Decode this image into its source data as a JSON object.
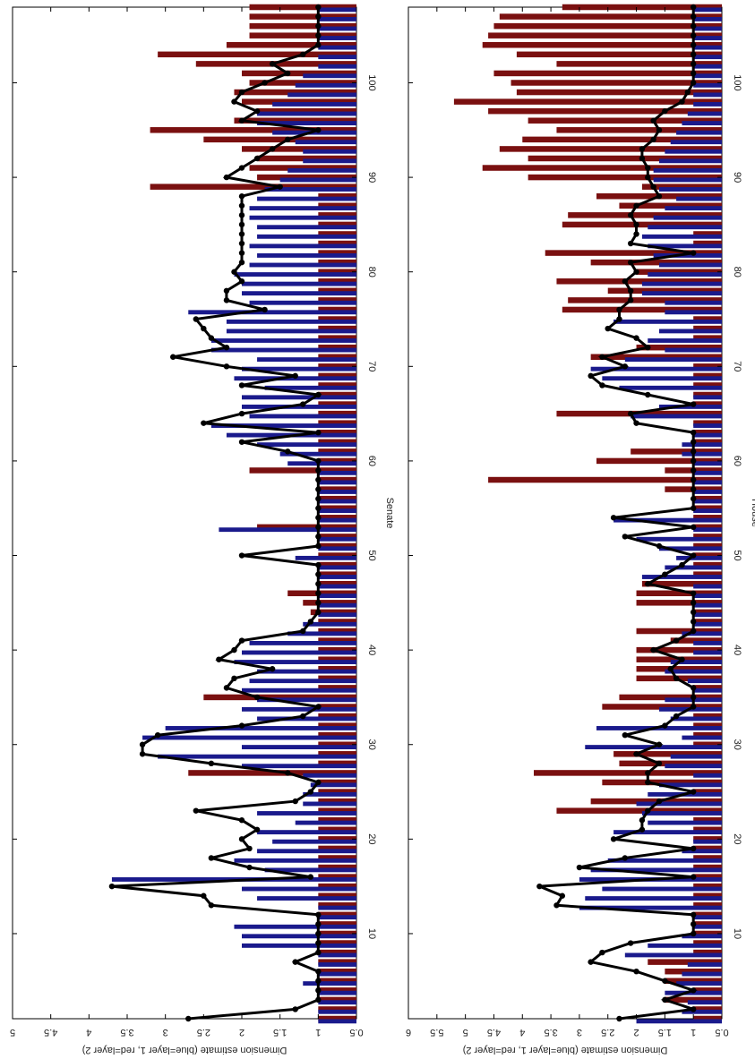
{
  "chart_data": [
    {
      "type": "bar",
      "panel": "top",
      "xlabel": "Senate",
      "ylabel": "Dimension estimate (blue=layer 1, red=layer 2)",
      "xlim": [
        1,
        108
      ],
      "ylim": [
        0.5,
        5
      ],
      "xticks": [
        10,
        20,
        30,
        40,
        50,
        60,
        70,
        80,
        90,
        100
      ],
      "xtick_labels": [
        "10",
        "20",
        "30",
        "40",
        "50",
        "60",
        "70",
        "80",
        "90",
        "100"
      ],
      "yticks": [
        0.5,
        1,
        1.5,
        2,
        2.5,
        3,
        3.5,
        4,
        4.5,
        5
      ],
      "ytick_labels": [
        "0.5",
        "1",
        "1.5",
        "2",
        "2.5",
        "3",
        "3.5",
        "4",
        "4.5",
        "5"
      ],
      "colors": {
        "layer1": "#1a1a8c",
        "layer2": "#7a1010",
        "line": "#000000"
      },
      "series": [
        {
          "name": "layer 1",
          "color": "#1a1a8c",
          "values": [
            1,
            1,
            1,
            1,
            1.2,
            1,
            1,
            1,
            2.0,
            2.0,
            2.1,
            1,
            1,
            1.8,
            2.0,
            3.7,
            1.7,
            2.1,
            1.8,
            1.6,
            1.8,
            1.3,
            1.8,
            1.2,
            1.2,
            1.1,
            1.2,
            2.0,
            3.1,
            2.0,
            3.3,
            3.0,
            1.8,
            2.0,
            1.8,
            2.0,
            1.9,
            1.8,
            2.1,
            2.0,
            1.9,
            1.4,
            1.2,
            1,
            1,
            1,
            1,
            1,
            1,
            1.3,
            1,
            1,
            2.3,
            1,
            1,
            1,
            1,
            1,
            1,
            1.4,
            1.5,
            1.8,
            2.2,
            2.4,
            1.9,
            2.0,
            2.0,
            1.7,
            2.1,
            2.0,
            1.8,
            2.4,
            2.4,
            2.2,
            2.2,
            2.7,
            1.9,
            2.0,
            2.0,
            2.1,
            1.9,
            1.8,
            1.9,
            1.8,
            1.8,
            1.9,
            1.9,
            1.8,
            1.7,
            1.5,
            1.4,
            1.2,
            1.2,
            1.3,
            1.6,
            1.8,
            1.8,
            1.6,
            1.4,
            1.3,
            1.2,
            1,
            1,
            1,
            1,
            1,
            1,
            1
          ]
        },
        {
          "name": "layer 2",
          "color": "#7a1010",
          "values": [
            1,
            1,
            1,
            1,
            1,
            1,
            1,
            1,
            1,
            1,
            1,
            1,
            1,
            1,
            1,
            1,
            1,
            1,
            1,
            1,
            1,
            1,
            1,
            1,
            1,
            1,
            2.7,
            1,
            1,
            1,
            1,
            1,
            1,
            1,
            2.5,
            1,
            1,
            1,
            1,
            1,
            1,
            1,
            1,
            1.1,
            1.2,
            1.4,
            1,
            1,
            1,
            1,
            1,
            1,
            1.8,
            1,
            1,
            1,
            1,
            1,
            1.9,
            1,
            1,
            1,
            1,
            1,
            1,
            1,
            1,
            1,
            1,
            1,
            1,
            1,
            1,
            1,
            1,
            1,
            1,
            1,
            1,
            1,
            1,
            1,
            1,
            1,
            1,
            1,
            1,
            1,
            3.2,
            1.8,
            1.9,
            1.8,
            2.0,
            2.5,
            3.2,
            2.1,
            1.8,
            2.0,
            2.1,
            1.9,
            2.0,
            2.6,
            3.1,
            2.2,
            1.9,
            1.9,
            1.9,
            1.9
          ]
        },
        {
          "name": "estimate",
          "color": "#000000",
          "values": [
            2.7,
            1.3,
            1,
            1,
            1,
            1,
            1.3,
            1,
            1,
            1,
            1,
            1,
            2.4,
            2.5,
            3.7,
            1.1,
            1.9,
            2.4,
            1.9,
            2.0,
            1.8,
            2.0,
            2.6,
            1.3,
            1.1,
            1.0,
            1.4,
            2.4,
            3.3,
            3.3,
            3.1,
            2.0,
            1.2,
            1.0,
            1.8,
            2.2,
            2.1,
            1.6,
            2.3,
            2.1,
            2.0,
            1.2,
            1.1,
            1.0,
            1.0,
            1.0,
            1.0,
            1.0,
            1.0,
            2.0,
            1.0,
            1.0,
            1.0,
            1.0,
            1.0,
            1.0,
            1.0,
            1.0,
            1.0,
            1.0,
            1.4,
            2.0,
            1.0,
            2.5,
            2.0,
            1.2,
            1.0,
            2.0,
            1.3,
            2.2,
            2.9,
            2.2,
            2.4,
            2.5,
            2.6,
            1.7,
            2.2,
            2.2,
            2.0,
            2.1,
            2.0,
            2.0,
            2.0,
            2.0,
            2.0,
            2.0,
            2.0,
            2.0,
            1.5,
            2.2,
            2.0,
            1.8,
            1.6,
            1.4,
            1.0,
            2.0,
            1.8,
            2.1,
            2.0,
            1.7,
            1.4,
            1.6,
            1.2,
            1,
            1,
            1,
            1,
            1
          ]
        }
      ]
    },
    {
      "type": "bar",
      "panel": "bottom",
      "xlabel": "House",
      "ylabel": "Dimension estimate (blue=layer 1, red=layer 2)",
      "xlim": [
        1,
        108
      ],
      "ylim": [
        0.5,
        6
      ],
      "xticks": [
        10,
        20,
        30,
        40,
        50,
        60,
        70,
        80,
        90,
        100
      ],
      "xtick_labels": [
        "10",
        "20",
        "30",
        "40",
        "50",
        "60",
        "70",
        "80",
        "90",
        "100"
      ],
      "yticks": [
        0.5,
        1,
        1.5,
        2,
        2.5,
        3,
        3.5,
        4,
        4.5,
        5,
        5.5,
        6
      ],
      "ytick_labels": [
        "0.5",
        "1",
        "1.5",
        "2",
        "2.5",
        "3",
        "3.5",
        "4",
        "4.5",
        "5",
        "5.5",
        "6"
      ],
      "colors": {
        "layer1": "#1a1a8c",
        "layer2": "#7a1010",
        "line": "#000000"
      },
      "series": [
        {
          "name": "layer 1",
          "color": "#1a1a8c",
          "values": [
            2.0,
            1.2,
            1.1,
            1.5,
            1.3,
            1.2,
            1.1,
            2.2,
            1.8,
            1.2,
            1.0,
            1.0,
            3.0,
            2.9,
            2.6,
            3.0,
            2.8,
            2.5,
            1.2,
            1.0,
            2.4,
            1.8,
            1.9,
            2.0,
            1.8,
            1.6,
            1.0,
            1.5,
            1.4,
            2.9,
            1.2,
            2.7,
            1.4,
            1.6,
            1.5,
            1.0,
            1.1,
            1.5,
            1.4,
            1.0,
            1.0,
            1.2,
            1.0,
            1.0,
            1.0,
            1.0,
            1.0,
            1.9,
            1.5,
            1.3,
            1.6,
            2.0,
            1.0,
            2.4,
            1.0,
            1.0,
            1.0,
            1.0,
            1.0,
            1.0,
            1.2,
            1.2,
            1.0,
            1.0,
            2.1,
            1.6,
            1.0,
            2.3,
            2.6,
            2.8,
            2.2,
            1.5,
            1.8,
            1.6,
            2.4,
            1.5,
            1.5,
            1.9,
            1.9,
            1.8,
            1.6,
            1.7,
            1.8,
            1.9,
            1.8,
            1.7,
            1.5,
            1.3,
            1.6,
            1.7,
            1.7,
            1.6,
            1.5,
            1.4,
            1.3,
            1.2,
            1.1,
            1.0,
            1.0,
            1.0,
            1.0,
            1.0,
            1.0,
            1.0,
            1.0,
            1.0,
            1.0,
            1.0
          ]
        },
        {
          "name": "layer 2",
          "color": "#7a1010",
          "values": [
            1,
            1,
            1.5,
            1,
            1.5,
            1.5,
            1.8,
            1,
            1,
            1,
            1,
            1,
            1,
            1,
            1,
            1,
            1,
            1,
            1,
            1,
            1,
            1,
            3.4,
            2.8,
            1,
            2.6,
            3.8,
            2.3,
            2.4,
            1,
            1,
            1,
            1,
            2.6,
            2.3,
            1,
            2.0,
            2.0,
            2.0,
            2.0,
            1.4,
            2.0,
            1,
            1,
            2.0,
            2.0,
            1.9,
            1,
            1,
            1,
            1,
            1,
            1,
            1,
            1,
            1,
            1.5,
            4.6,
            1.5,
            2.7,
            2.1,
            1,
            1,
            1,
            3.4,
            1,
            1,
            1,
            1,
            1,
            2.8,
            2.0,
            1,
            1,
            1,
            3.3,
            3.2,
            2.5,
            3.4,
            2.0,
            2.8,
            3.6,
            1,
            1,
            3.3,
            3.2,
            2.3,
            2.7,
            1.9,
            3.9,
            4.7,
            3.9,
            4.4,
            4.0,
            3.4,
            3.9,
            4.6,
            5.2,
            4.1,
            4.2,
            4.5,
            3.4,
            4.1,
            4.7,
            4.6,
            4.5,
            4.4,
            3.3
          ]
        },
        {
          "name": "estimate",
          "color": "#000000",
          "values": [
            2.3,
            1.0,
            1.5,
            1.0,
            1.5,
            2.0,
            2.8,
            2.6,
            2.1,
            1.0,
            1.0,
            1.0,
            3.4,
            3.3,
            3.7,
            1.0,
            3.0,
            2.2,
            1.0,
            2.4,
            1.9,
            1.9,
            1.8,
            1.6,
            1.0,
            1.8,
            1.8,
            1.6,
            2.0,
            1.6,
            2.2,
            1.5,
            1.3,
            1.0,
            1.0,
            1.0,
            1.3,
            1.4,
            1.2,
            1.7,
            1.3,
            1.0,
            1.0,
            1.0,
            1.0,
            1.0,
            1.8,
            1.5,
            1.2,
            1.0,
            1.6,
            2.2,
            1.0,
            2.4,
            1.0,
            1.0,
            1.0,
            1.0,
            1.0,
            1.0,
            1.0,
            1.0,
            1.0,
            2.0,
            2.1,
            1.0,
            1.8,
            2.6,
            2.8,
            2.2,
            2.6,
            1.8,
            2.0,
            2.5,
            2.3,
            2.3,
            2.1,
            2.1,
            2.2,
            2.0,
            2.1,
            1.0,
            2.1,
            2.0,
            2.0,
            2.1,
            2.0,
            1.6,
            1.7,
            1.8,
            1.8,
            1.9,
            1.9,
            1.7,
            1.6,
            1.7,
            1.5,
            1.2,
            1.1,
            1.0,
            1.0,
            1.0,
            1.0,
            1.0,
            1.0,
            1.0,
            1.0,
            1.0
          ]
        }
      ]
    }
  ]
}
